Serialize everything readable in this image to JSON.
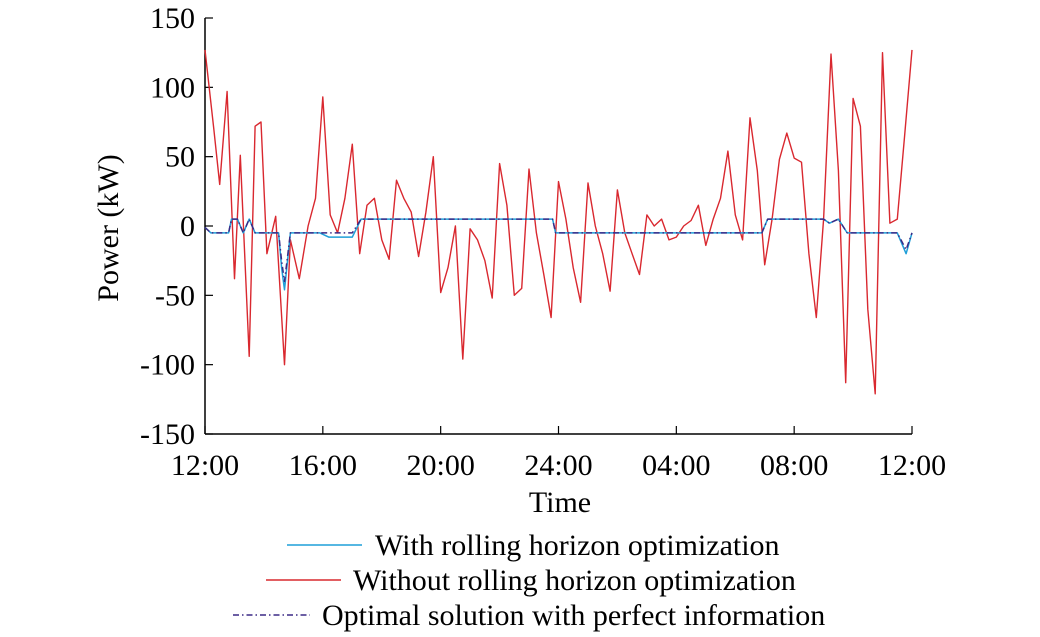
{
  "chart_data": {
    "type": "line",
    "xlabel": "Time",
    "ylabel": "Power (kW)",
    "x_ticks": [
      "12:00",
      "16:00",
      "20:00",
      "24:00",
      "04:00",
      "08:00",
      "12:00"
    ],
    "x_hours": [
      0,
      4,
      8,
      12,
      16,
      20,
      24
    ],
    "y_ticks": [
      150,
      100,
      50,
      0,
      -50,
      -100,
      -150
    ],
    "xlim": [
      0,
      24
    ],
    "ylim": [
      -150,
      150
    ],
    "legend_position": "bottom",
    "series": [
      {
        "name": "With rolling horizon optimization",
        "color": "#1f9fd8",
        "style": "solid",
        "x": [
          0,
          0.2,
          0.5,
          0.8,
          0.9,
          1.1,
          1.3,
          1.5,
          1.7,
          2.0,
          2.3,
          2.5,
          2.6,
          2.7,
          2.9,
          3.0,
          3.2,
          3.6,
          3.9,
          4.2,
          4.6,
          4.8,
          5.0,
          5.3,
          8.0,
          10.0,
          11.8,
          11.9,
          14.0,
          16.0,
          18.0,
          18.9,
          19.1,
          20.0,
          21.0,
          21.2,
          21.5,
          21.8,
          22.0,
          22.5,
          23.0,
          23.5,
          23.8,
          24.0
        ],
        "y": [
          -1,
          -5,
          -5,
          -5,
          5,
          5,
          -5,
          5,
          -5,
          -5,
          -5,
          -5,
          -30,
          -46,
          -5,
          -5,
          -5,
          -5,
          -5,
          -8,
          -8,
          -8,
          -8,
          5,
          5,
          5,
          5,
          -5,
          -5,
          -5,
          -5,
          -5,
          5,
          5,
          5,
          2,
          5,
          -5,
          -5,
          -5,
          -5,
          -5,
          -20,
          -5
        ]
      },
      {
        "name": "Without rolling horizon optimization",
        "color": "#d9282f",
        "style": "solid",
        "x": [
          0,
          0.3,
          0.5,
          0.75,
          1.0,
          1.2,
          1.5,
          1.7,
          1.9,
          2.1,
          2.4,
          2.7,
          2.9,
          3.2,
          3.5,
          3.75,
          4.0,
          4.25,
          4.5,
          4.75,
          5.0,
          5.25,
          5.5,
          5.75,
          6.0,
          6.25,
          6.5,
          6.75,
          7.0,
          7.25,
          7.5,
          7.75,
          8.0,
          8.25,
          8.5,
          8.75,
          9.0,
          9.25,
          9.5,
          9.75,
          10.0,
          10.25,
          10.5,
          10.75,
          11.0,
          11.25,
          11.5,
          11.75,
          12.0,
          12.25,
          12.5,
          12.75,
          13.0,
          13.25,
          13.5,
          13.75,
          14.0,
          14.25,
          14.5,
          14.75,
          15.0,
          15.25,
          15.5,
          15.75,
          16.0,
          16.25,
          16.5,
          16.75,
          17.0,
          17.25,
          17.5,
          17.75,
          18.0,
          18.25,
          18.5,
          18.75,
          19.0,
          19.25,
          19.5,
          19.75,
          20.0,
          20.25,
          20.5,
          20.75,
          21.0,
          21.25,
          21.5,
          21.75,
          22.0,
          22.25,
          22.5,
          22.75,
          23.0,
          23.25,
          23.5,
          23.75,
          24.0
        ],
        "y": [
          127,
          70,
          30,
          97,
          -38,
          51,
          -94,
          72,
          75,
          -20,
          7,
          -100,
          -10,
          -38,
          0,
          20,
          93,
          8,
          -5,
          20,
          59,
          -20,
          15,
          20,
          -10,
          -24,
          33,
          20,
          10,
          -22,
          10,
          50,
          -48,
          -30,
          0,
          -96,
          -2,
          -10,
          -25,
          -52,
          45,
          15,
          -50,
          -45,
          41,
          -5,
          -35,
          -66,
          32,
          5,
          -30,
          -55,
          31,
          0,
          -20,
          -47,
          26,
          -5,
          -20,
          -35,
          8,
          0,
          5,
          -10,
          -8,
          0,
          4,
          15,
          -14,
          5,
          20,
          54,
          8,
          -10,
          78,
          40,
          -28,
          5,
          48,
          67,
          49,
          46,
          -20,
          -66,
          5,
          124,
          40,
          -113,
          92,
          72,
          -60,
          -121,
          125,
          2,
          5,
          65,
          127
        ]
      },
      {
        "name": "Optimal solution with perfect information",
        "color": "#3b2a86",
        "style": "dashdot",
        "x": [
          0,
          0.2,
          0.5,
          0.8,
          0.9,
          1.1,
          1.3,
          1.5,
          1.7,
          2.0,
          2.3,
          2.5,
          2.6,
          2.7,
          2.9,
          3.0,
          3.2,
          3.6,
          3.9,
          4.2,
          4.6,
          4.8,
          5.0,
          5.3,
          8.0,
          10.0,
          11.8,
          11.9,
          14.0,
          16.0,
          18.0,
          18.9,
          19.1,
          20.0,
          21.0,
          21.2,
          21.5,
          21.8,
          22.0,
          22.5,
          23.0,
          23.5,
          23.8,
          24.0
        ],
        "y": [
          -1,
          -5,
          -5,
          -5,
          5,
          5,
          -5,
          5,
          -5,
          -5,
          -5,
          -5,
          -25,
          -40,
          -5,
          -5,
          -5,
          -5,
          -5,
          -5,
          -5,
          -5,
          -5,
          5,
          5,
          5,
          5,
          -5,
          -5,
          -5,
          -5,
          -5,
          5,
          5,
          5,
          2,
          5,
          -5,
          -5,
          -5,
          -5,
          -5,
          -17,
          -5
        ]
      }
    ]
  }
}
